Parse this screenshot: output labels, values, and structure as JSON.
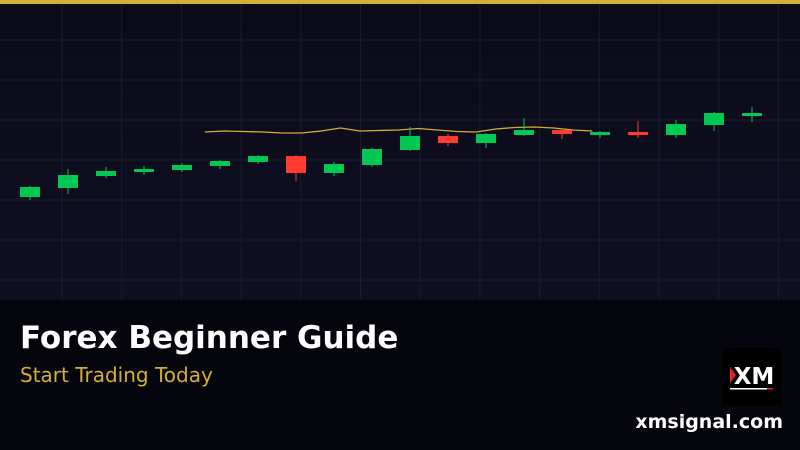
{
  "banner": {
    "title": "Forex Beginner Guide",
    "subtitle": "Start Trading Today",
    "website": "xmsignal.com",
    "logo_text": "XM"
  },
  "colors": {
    "accent": "#d4af37",
    "bullish": "#00c853",
    "bearish": "#ff3b30",
    "background": "#0b0b1a"
  },
  "chart_data": {
    "type": "candlestick",
    "title": "",
    "xlabel": "",
    "ylabel": "",
    "grid": true,
    "candles": [
      {
        "o": 103,
        "c": 113,
        "h": 114,
        "l": 100
      },
      {
        "o": 112,
        "c": 125,
        "h": 131,
        "l": 106
      },
      {
        "o": 124,
        "c": 129,
        "h": 133,
        "l": 122
      },
      {
        "o": 128,
        "c": 131,
        "h": 134,
        "l": 125
      },
      {
        "o": 130,
        "c": 135,
        "h": 137,
        "l": 128
      },
      {
        "o": 134,
        "c": 139,
        "h": 140,
        "l": 131
      },
      {
        "o": 138,
        "c": 144,
        "h": 145,
        "l": 136
      },
      {
        "o": 144,
        "c": 127,
        "h": 145,
        "l": 119
      },
      {
        "o": 127,
        "c": 136,
        "h": 138,
        "l": 124
      },
      {
        "o": 135,
        "c": 151,
        "h": 152,
        "l": 133
      },
      {
        "o": 150,
        "c": 164,
        "h": 173,
        "l": 149
      },
      {
        "o": 164,
        "c": 157,
        "h": 166,
        "l": 154
      },
      {
        "o": 157,
        "c": 166,
        "h": 167,
        "l": 152
      },
      {
        "o": 165,
        "c": 170,
        "h": 182,
        "l": 164
      },
      {
        "o": 170,
        "c": 166,
        "h": 171,
        "l": 161
      },
      {
        "o": 165,
        "c": 168,
        "h": 169,
        "l": 162
      },
      {
        "o": 168,
        "c": 165,
        "h": 179,
        "l": 162
      },
      {
        "o": 165,
        "c": 176,
        "h": 180,
        "l": 162
      },
      {
        "o": 175,
        "c": 187,
        "h": 188,
        "l": 169
      },
      {
        "o": 184,
        "c": 187,
        "h": 193,
        "l": 178
      }
    ],
    "moving_average": {
      "start_index": 4.6,
      "end_index": 14.8,
      "values": [
        168,
        169,
        168.5,
        168,
        167,
        167,
        169,
        172,
        169,
        169.5,
        170,
        171.5,
        170,
        168.5,
        168,
        171,
        172.5,
        173,
        172,
        170,
        169
      ]
    }
  }
}
